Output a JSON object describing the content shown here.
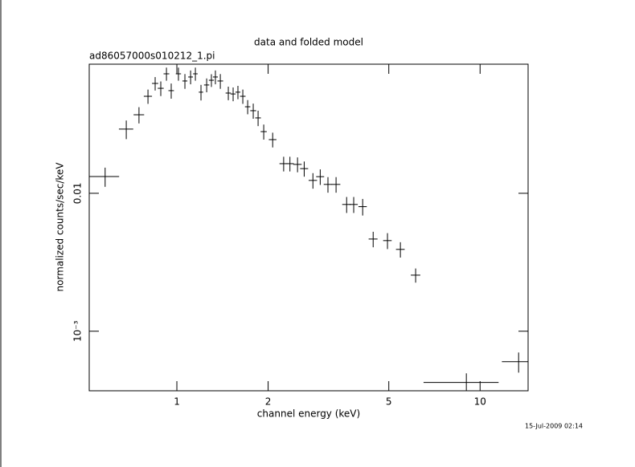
{
  "chart_data": {
    "type": "scatter",
    "title": "data and folded model",
    "subtitle": "ad86057000s010212_1.pi",
    "xlabel": "channel energy (keV)",
    "ylabel": "normalized counts/sec/keV",
    "date_label": "15-Jul-2009 02:14",
    "log_x": true,
    "log_y": true,
    "color": "#000000",
    "xlim": [
      0.514,
      14.4
    ],
    "ylim": [
      0.00037,
      0.0863
    ],
    "xticks": [
      1,
      2,
      5,
      10
    ],
    "yticks": [
      {
        "value": 0.001,
        "label": "10⁻³"
      },
      0.01
    ],
    "series": [
      {
        "x": [
          0.58,
          0.681,
          0.75,
          0.803,
          0.848,
          0.885,
          0.924,
          0.958,
          1.012,
          1.063,
          1.11,
          1.151,
          1.201,
          1.254,
          1.3,
          1.34,
          1.391,
          1.478,
          1.533,
          1.59,
          1.65,
          1.712,
          1.786,
          1.853,
          1.934,
          2.07,
          2.25,
          2.36,
          2.5,
          2.63,
          2.81,
          2.97,
          3.15,
          3.35,
          3.63,
          3.83,
          4.1,
          4.44,
          4.95,
          5.46,
          6.13,
          9.01,
          13.4
        ],
        "xerr": [
          0.065,
          0.037,
          0.03,
          0.025,
          0.02,
          0.02,
          0.02,
          0.02,
          0.02,
          0.02,
          0.02,
          0.02,
          0.02,
          0.025,
          0.025,
          0.025,
          0.03,
          0.03,
          0.03,
          0.03,
          0.035,
          0.035,
          0.04,
          0.04,
          0.045,
          0.06,
          0.07,
          0.07,
          0.08,
          0.08,
          0.09,
          0.09,
          0.1,
          0.11,
          0.12,
          0.12,
          0.13,
          0.15,
          0.16,
          0.18,
          0.22,
          2.5,
          1.6
        ],
        "values": [
          0.01324,
          0.0292,
          0.0371,
          0.0505,
          0.0626,
          0.0577,
          0.0735,
          0.0555,
          0.0735,
          0.0652,
          0.0697,
          0.0735,
          0.0541,
          0.061,
          0.066,
          0.0697,
          0.0652,
          0.0533,
          0.0525,
          0.0541,
          0.0505,
          0.0424,
          0.0397,
          0.0352,
          0.028,
          0.0245,
          0.0164,
          0.0164,
          0.0162,
          0.0151,
          0.0124,
          0.0132,
          0.0116,
          0.0116,
          0.0083,
          0.0083,
          0.008,
          0.00466,
          0.00454,
          0.00392,
          0.00255,
          0.000425,
          0.000601
        ],
        "yerr": [
          0.0021,
          0.0045,
          0.005,
          0.006,
          0.007,
          0.007,
          0.008,
          0.007,
          0.008,
          0.008,
          0.008,
          0.008,
          0.007,
          0.007,
          0.007,
          0.008,
          0.008,
          0.006,
          0.006,
          0.006,
          0.006,
          0.005,
          0.005,
          0.0045,
          0.0035,
          0.003,
          0.002,
          0.002,
          0.002,
          0.0019,
          0.0016,
          0.0017,
          0.0015,
          0.0015,
          0.0011,
          0.0011,
          0.0011,
          0.0006,
          0.0006,
          0.0005,
          0.0003,
          7e-05,
          0.0001
        ]
      }
    ]
  }
}
